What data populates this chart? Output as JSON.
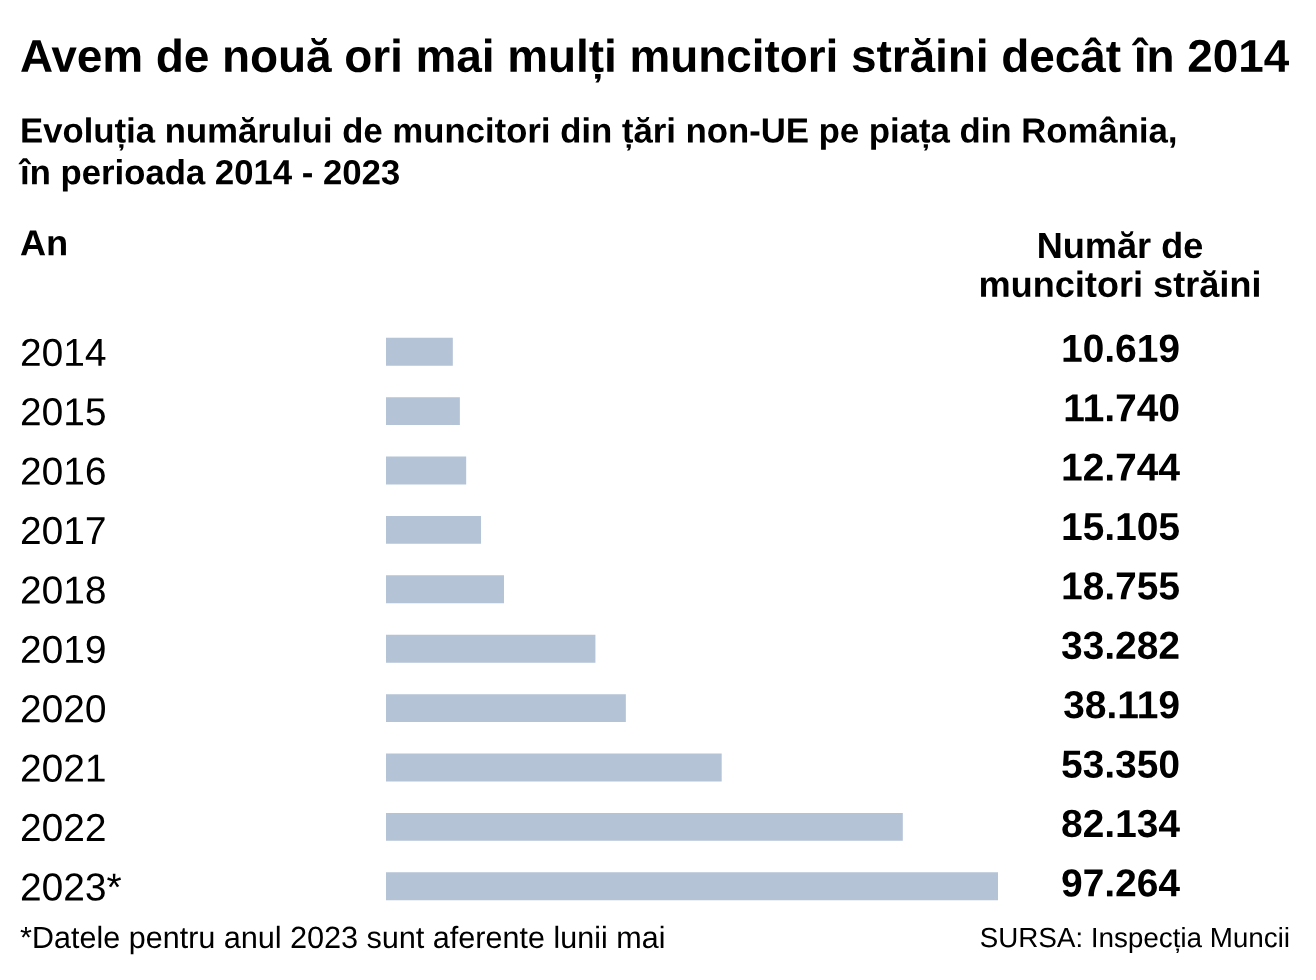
{
  "chart_data": {
    "type": "bar",
    "orientation": "horizontal",
    "title": "Avem de nouă ori mai mulți muncitori străini decât în 2014",
    "subtitle": "Evoluția numărului de muncitori din țări non-UE pe piața din România,\nîn perioada 2014 - 2023",
    "ylabel": "An",
    "xlabel": "Număr de\nmuncitori străini",
    "categories": [
      "2014",
      "2015",
      "2016",
      "2017",
      "2018",
      "2019",
      "2020",
      "2021",
      "2022",
      "2023*"
    ],
    "values": [
      10619,
      11740,
      12744,
      15105,
      18755,
      33282,
      38119,
      53350,
      82134,
      97264
    ],
    "value_labels": [
      "10.619",
      "11.740",
      "12.744",
      "15.105",
      "18.755",
      "33.282",
      "38.119",
      "53.350",
      "82.134",
      "97.264"
    ],
    "color": "#b4c3d6",
    "annotations": [
      "*Datele pentru anul 2023 sunt aferente lunii mai",
      "SURSA: Inspecția Muncii"
    ],
    "grid": false,
    "legend": false
  }
}
